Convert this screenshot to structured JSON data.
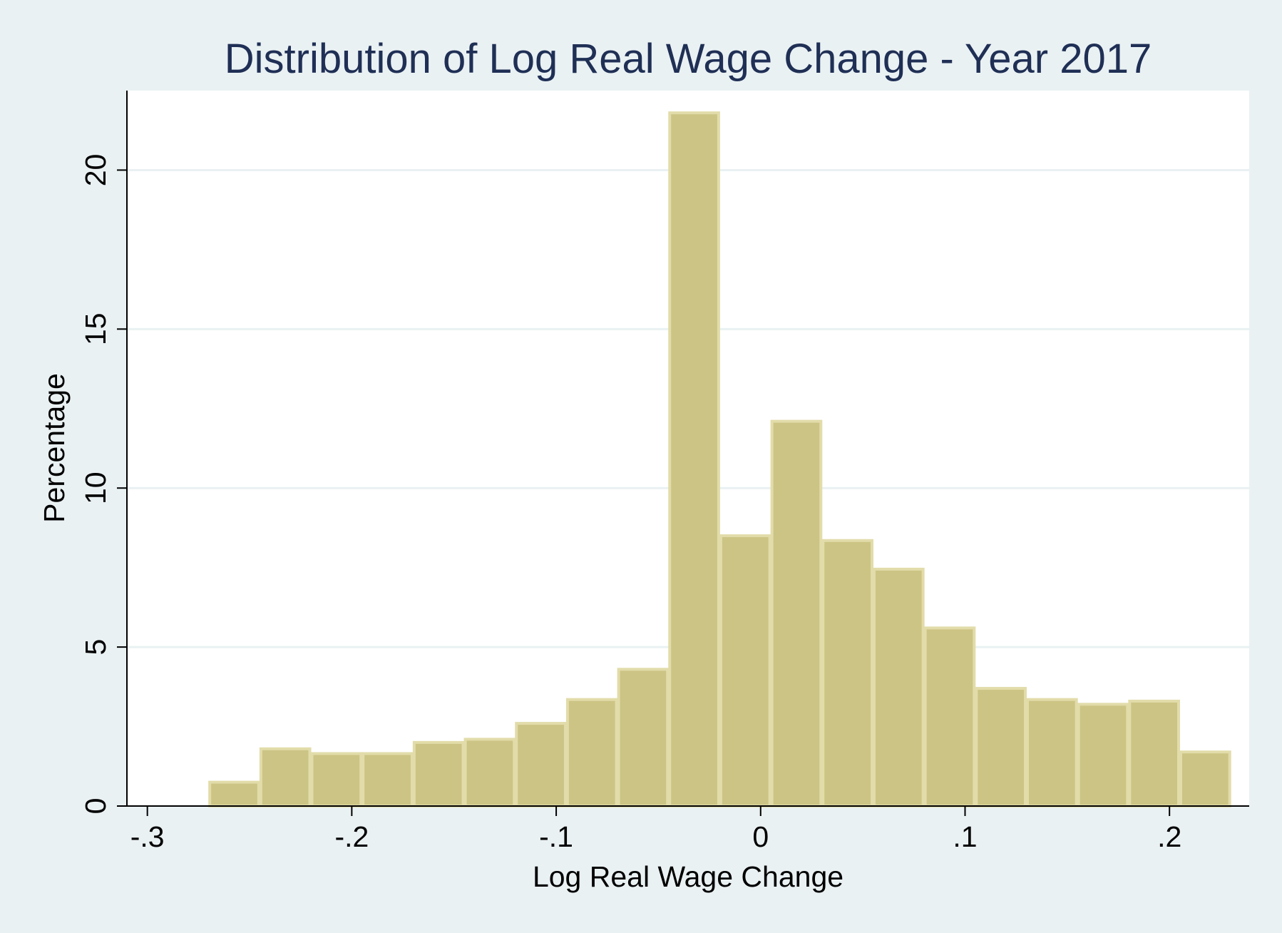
{
  "colors": {
    "background": "#eaf1f3",
    "plot_background": "#ffffff",
    "bar_fill": "#ccc484",
    "bar_edge": "#e2dcaa",
    "title": "#1f2f55",
    "gridline": "#eaf1f3",
    "axis": "#000000"
  },
  "chart_data": {
    "type": "bar",
    "title": "Distribution of Log Real Wage Change - Year 2017",
    "xlabel": "Log Real Wage Change",
    "ylabel": "Percentage",
    "xlim": [
      -0.31,
      0.239
    ],
    "ylim": [
      0,
      22.5
    ],
    "grid": true,
    "x_ticks": [
      {
        "value": -0.3,
        "label": "-.3"
      },
      {
        "value": -0.2,
        "label": "-.2"
      },
      {
        "value": -0.1,
        "label": "-.1"
      },
      {
        "value": 0,
        "label": "0"
      },
      {
        "value": 0.1,
        "label": ".1"
      },
      {
        "value": 0.2,
        "label": ".2"
      }
    ],
    "y_ticks": [
      {
        "value": 0,
        "label": "0"
      },
      {
        "value": 5,
        "label": "5"
      },
      {
        "value": 10,
        "label": "10"
      },
      {
        "value": 15,
        "label": "15"
      },
      {
        "value": 20,
        "label": "20"
      }
    ],
    "bin_start": -0.27,
    "bin_width": 0.025,
    "values": [
      0.75,
      1.8,
      1.65,
      1.65,
      2.0,
      2.1,
      2.6,
      3.35,
      4.3,
      21.8,
      8.5,
      12.1,
      8.35,
      7.45,
      5.6,
      3.7,
      3.35,
      3.2,
      3.3,
      1.7
    ]
  }
}
